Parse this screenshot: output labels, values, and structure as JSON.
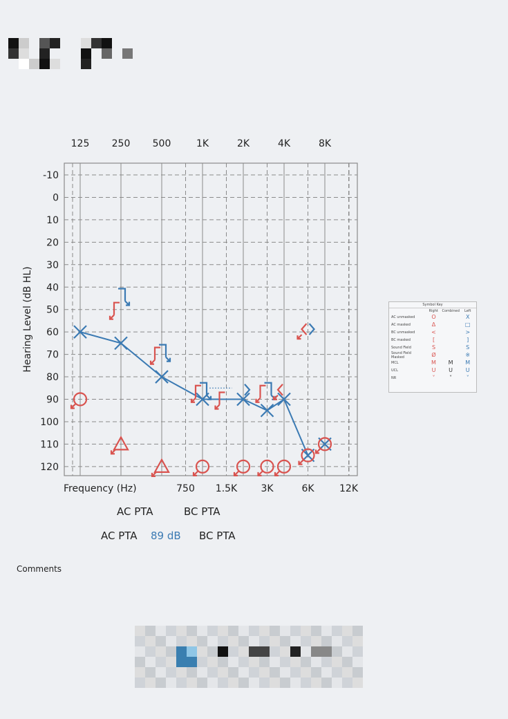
{
  "chart_data": {
    "type": "audiogram",
    "ylabel": "Hearing Level (dB HL)",
    "xlabel": "Frequency (Hz)",
    "ylim": [
      -10,
      120
    ],
    "yticks": [
      -10,
      0,
      10,
      20,
      30,
      40,
      50,
      60,
      70,
      80,
      90,
      100,
      110,
      120
    ],
    "top_ticks": [
      {
        "f": 125,
        "label": "125"
      },
      {
        "f": 250,
        "label": "250"
      },
      {
        "f": 500,
        "label": "500"
      },
      {
        "f": 1000,
        "label": "1K"
      },
      {
        "f": 2000,
        "label": "2K"
      },
      {
        "f": 4000,
        "label": "4K"
      },
      {
        "f": 8000,
        "label": "8K"
      }
    ],
    "bottom_ticks": [
      {
        "f": 750,
        "label": "750"
      },
      {
        "f": 1500,
        "label": "1.5K"
      },
      {
        "f": 3000,
        "label": "3K"
      },
      {
        "f": 6000,
        "label": "6K"
      },
      {
        "f": 12000,
        "label": "12K"
      }
    ],
    "series": [
      {
        "name": "Left AC unmasked",
        "symbol": "x",
        "color": "#3b7ab3",
        "connected": true,
        "points": [
          [
            125,
            60
          ],
          [
            250,
            65
          ],
          [
            500,
            80
          ],
          [
            1000,
            90
          ],
          [
            2000,
            90
          ],
          [
            3000,
            95
          ],
          [
            4000,
            90
          ],
          [
            6000,
            115
          ]
        ]
      },
      {
        "name": "Left AC unmasked (unconnected)",
        "symbol": "x",
        "color": "#3b7ab3",
        "connected": false,
        "points": [
          [
            8000,
            110
          ]
        ]
      },
      {
        "name": "Right AC unmasked (NR)",
        "symbol": "o",
        "color": "#d9534f",
        "nr": true,
        "points": [
          [
            125,
            90
          ],
          [
            1000,
            120
          ],
          [
            2000,
            120
          ],
          [
            3000,
            120
          ],
          [
            4000,
            120
          ],
          [
            6000,
            115
          ],
          [
            8000,
            110
          ]
        ]
      },
      {
        "name": "Right AC masked (NR)",
        "symbol": "triangle",
        "color": "#d9534f",
        "nr": true,
        "points": [
          [
            250,
            110
          ],
          [
            500,
            120
          ]
        ]
      },
      {
        "name": "Right BC masked (NR)",
        "symbol": "[",
        "color": "#d9534f",
        "nr": true,
        "points": [
          [
            250,
            50
          ],
          [
            500,
            70
          ],
          [
            1000,
            87
          ],
          [
            1500,
            90
          ],
          [
            3000,
            87
          ]
        ]
      },
      {
        "name": "Left BC masked (NR)",
        "symbol": "]",
        "color": "#3b7ab3",
        "nr": true,
        "points": [
          [
            250,
            45
          ],
          [
            500,
            70
          ],
          [
            1000,
            87
          ],
          [
            3000,
            87
          ]
        ]
      },
      {
        "name": "Left BC unmasked",
        "symbol": ">",
        "color": "#3b7ab3",
        "points": [
          [
            2000,
            87
          ],
          [
            6000,
            60
          ]
        ]
      },
      {
        "name": "Right BC unmasked (NR)",
        "symbol": "<",
        "color": "#d9534f",
        "nr": true,
        "points": [
          [
            4000,
            87
          ],
          [
            6000,
            60
          ]
        ]
      }
    ]
  },
  "pta": {
    "ac_label": "AC PTA",
    "bc_label": "BC PTA",
    "ac_label2": "AC PTA",
    "ac_value": "89 dB",
    "bc_label2": "BC PTA"
  },
  "comments_label": "Comments",
  "symbol_key": {
    "title": "Symbol Key",
    "headers": [
      "Right",
      "Combined",
      "Left"
    ],
    "rows": [
      {
        "name": "AC unmasked",
        "right": "O",
        "combined": "",
        "left": "X"
      },
      {
        "name": "AC masked",
        "right": "Δ",
        "combined": "",
        "left": "□"
      },
      {
        "name": "BC unmasked",
        "right": "<",
        "combined": "",
        "left": ">"
      },
      {
        "name": "BC masked",
        "right": "[",
        "combined": "",
        "left": "]"
      },
      {
        "name": "Sound Field",
        "right": "S",
        "combined": "",
        "left": "S"
      },
      {
        "name": "Sound Field Masked",
        "right": "Ø",
        "combined": "",
        "left": "※"
      },
      {
        "name": "MCL",
        "right": "M",
        "combined": "M",
        "left": "M"
      },
      {
        "name": "UCL",
        "right": "U",
        "combined": "U",
        "left": "U"
      },
      {
        "name": "NR",
        "right": "˅",
        "combined": "˅",
        "left": "˅"
      }
    ]
  },
  "colors": {
    "right": "#d9534f",
    "left": "#3b7ab3",
    "grid": "#8a8a8a"
  }
}
